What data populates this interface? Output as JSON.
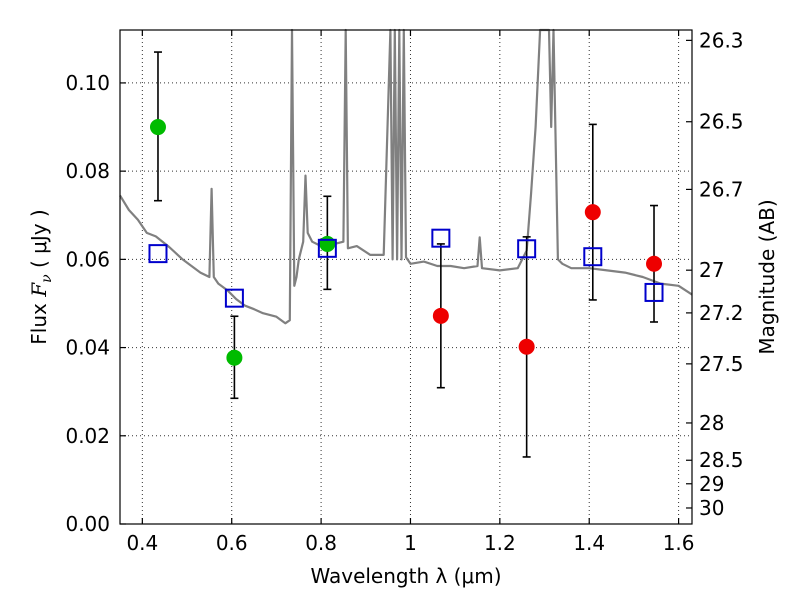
{
  "chart_data": {
    "type": "scatter",
    "xlabel": "Wavelength  λ (μm)",
    "ylabel_prefix": "Flux  ",
    "ylabel_var": "F",
    "ylabel_sub": "ν",
    "ylabel_suffix": "  (  μJy  )",
    "y2label": "Magnitude (AB)",
    "xlim": [
      0.35,
      1.63
    ],
    "ylim": [
      0.0,
      0.112
    ],
    "grid": true,
    "x_ticks": [
      {
        "value": 0.4,
        "label": "0.4"
      },
      {
        "value": 0.6,
        "label": "0.6"
      },
      {
        "value": 0.8,
        "label": "0.8"
      },
      {
        "value": 1.0,
        "label": "1"
      },
      {
        "value": 1.2,
        "label": "1.2"
      },
      {
        "value": 1.4,
        "label": "1.4"
      },
      {
        "value": 1.6,
        "label": "1.6"
      }
    ],
    "y_ticks": [
      {
        "value": 0.0,
        "label": "0.00"
      },
      {
        "value": 0.02,
        "label": "0.02"
      },
      {
        "value": 0.04,
        "label": "0.04"
      },
      {
        "value": 0.06,
        "label": "0.06"
      },
      {
        "value": 0.08,
        "label": "0.08"
      },
      {
        "value": 0.1,
        "label": "0.10"
      }
    ],
    "mag_ticks": [
      {
        "mag": 26.3,
        "label": "26.3"
      },
      {
        "mag": 26.5,
        "label": "26.5"
      },
      {
        "mag": 26.7,
        "label": "26.7"
      },
      {
        "mag": 27.0,
        "label": "27"
      },
      {
        "mag": 27.2,
        "label": "27.2"
      },
      {
        "mag": 27.5,
        "label": "27.5"
      },
      {
        "mag": 28.0,
        "label": "28"
      },
      {
        "mag": 28.5,
        "label": "28.5"
      },
      {
        "mag": 29.0,
        "label": "29"
      },
      {
        "mag": 30.0,
        "label": "30"
      }
    ],
    "series": [
      {
        "name": "detections-green",
        "color": "#00bb00",
        "marker": "circle",
        "points": [
          {
            "x": 0.435,
            "y": 0.09,
            "err_lo": 0.0733,
            "err_hi": 0.107
          },
          {
            "x": 0.606,
            "y": 0.0377,
            "err_lo": 0.0285,
            "err_hi": 0.0471
          },
          {
            "x": 0.814,
            "y": 0.0635,
            "err_lo": 0.0532,
            "err_hi": 0.0743
          }
        ]
      },
      {
        "name": "detections-red",
        "color": "#ee0000",
        "marker": "circle",
        "points": [
          {
            "x": 1.068,
            "y": 0.0472,
            "err_lo": 0.0309,
            "err_hi": 0.0635
          },
          {
            "x": 1.26,
            "y": 0.0402,
            "err_lo": 0.0152,
            "err_hi": 0.0651
          },
          {
            "x": 1.408,
            "y": 0.0707,
            "err_lo": 0.0508,
            "err_hi": 0.0906
          },
          {
            "x": 1.545,
            "y": 0.059,
            "err_lo": 0.0458,
            "err_hi": 0.0722
          }
        ]
      },
      {
        "name": "model-photometry",
        "color": "#0000cc",
        "marker": "open-square",
        "points": [
          {
            "x": 0.435,
            "y": 0.0613
          },
          {
            "x": 0.606,
            "y": 0.0512
          },
          {
            "x": 0.814,
            "y": 0.0625
          },
          {
            "x": 1.068,
            "y": 0.0648
          },
          {
            "x": 1.26,
            "y": 0.0624
          },
          {
            "x": 1.408,
            "y": 0.0606
          },
          {
            "x": 1.545,
            "y": 0.0525
          }
        ]
      }
    ],
    "model_spectrum": {
      "name": "model-sed",
      "color": "#808080",
      "x": [
        0.35,
        0.37,
        0.39,
        0.41,
        0.43,
        0.46,
        0.49,
        0.51,
        0.53,
        0.55,
        0.555,
        0.56,
        0.57,
        0.59,
        0.61,
        0.63,
        0.65,
        0.67,
        0.7,
        0.72,
        0.73,
        0.735,
        0.74,
        0.745,
        0.75,
        0.76,
        0.765,
        0.77,
        0.78,
        0.8,
        0.83,
        0.85,
        0.855,
        0.86,
        0.88,
        0.91,
        0.94,
        0.955,
        0.96,
        0.965,
        0.97,
        0.975,
        0.98,
        0.985,
        0.99,
        1.0,
        1.03,
        1.06,
        1.09,
        1.12,
        1.15,
        1.155,
        1.16,
        1.2,
        1.24,
        1.26,
        1.27,
        1.28,
        1.29,
        1.3,
        1.31,
        1.315,
        1.32,
        1.33,
        1.34,
        1.36,
        1.4,
        1.44,
        1.48,
        1.52,
        1.56,
        1.6,
        1.63
      ],
      "y": [
        0.0745,
        0.0712,
        0.069,
        0.066,
        0.0652,
        0.0628,
        0.06,
        0.0585,
        0.057,
        0.056,
        0.076,
        0.056,
        0.0545,
        0.053,
        0.051,
        0.0495,
        0.0487,
        0.0478,
        0.047,
        0.0455,
        0.0462,
        0.112,
        0.054,
        0.056,
        0.06,
        0.064,
        0.079,
        0.066,
        0.064,
        0.063,
        0.0635,
        0.064,
        0.112,
        0.0625,
        0.063,
        0.061,
        0.061,
        0.112,
        0.06,
        0.112,
        0.06,
        0.112,
        0.06,
        0.112,
        0.0605,
        0.059,
        0.0595,
        0.0585,
        0.0585,
        0.058,
        0.0585,
        0.065,
        0.058,
        0.0575,
        0.058,
        0.062,
        0.075,
        0.09,
        0.112,
        0.112,
        0.112,
        0.09,
        0.112,
        0.06,
        0.059,
        0.058,
        0.058,
        0.0575,
        0.057,
        0.056,
        0.0545,
        0.054,
        0.052
      ]
    }
  }
}
